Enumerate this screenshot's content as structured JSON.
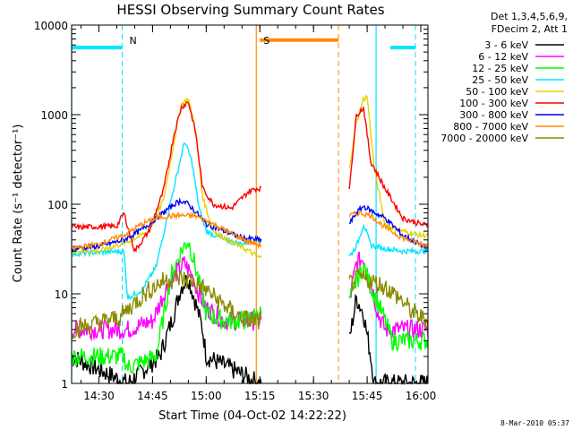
{
  "chart_data": {
    "type": "line",
    "title": "HESSI Observing Summary Count Rates",
    "xlabel": "Start Time (04-Oct-02 14:22:22)",
    "ylabel": "Count Rate (s⁻¹ detector⁻¹)",
    "yscale": "log",
    "ylim": [
      1,
      10000
    ],
    "xlim": [
      "14:22:22",
      "16:02:00"
    ],
    "x_ticks": [
      "14:30",
      "14:45",
      "15:00",
      "15:15",
      "15:30",
      "15:45",
      "16:00"
    ],
    "y_ticks": [
      "1",
      "10",
      "100",
      "1000",
      "10000"
    ],
    "legend_header": [
      "Det 1,3,4,5,6,9,",
      "FDecim 2, Att 1"
    ],
    "timestamp": "8-Mar-2010 05:37",
    "legend_position": "right-outside",
    "grid": false,
    "annotations": [
      {
        "text": "N",
        "color": "#00e5ff",
        "time": "14:36:30"
      },
      {
        "text": "S",
        "color": "#ff8c00",
        "time": "15:14:00"
      }
    ],
    "level_bars": [
      {
        "color": "#00e5ff",
        "t0": "14:22:22",
        "t1": "14:36:30",
        "value": 5600
      },
      {
        "color": "#00e5ff",
        "t0": "15:51:30",
        "t1": "15:58:30",
        "value": 5600
      },
      {
        "color": "#ff8c00",
        "t0": "15:15:00",
        "t1": "15:37:00",
        "value": 6800
      }
    ],
    "dashed_markers": [
      {
        "time": "14:36:30",
        "color": "#00e5ff"
      },
      {
        "time": "15:37:00",
        "color": "#ff8c00"
      },
      {
        "time": "15:58:30",
        "color": "#00e5ff"
      }
    ],
    "solid_markers": [
      {
        "time": "14:22:22",
        "color": "#00e5ff"
      },
      {
        "time": "15:14:00",
        "color": "#ff8c00"
      },
      {
        "time": "15:47:30",
        "color": "#00e5ff"
      }
    ],
    "segments": [
      {
        "t0": "14:22:22",
        "t1": "15:15:30"
      },
      {
        "t0": "15:40:00",
        "t1": "16:02:00"
      }
    ],
    "series": [
      {
        "name": "3 - 6 keV",
        "color": "#000000",
        "pts": [
          [
            "14:22:22",
            2
          ],
          [
            "14:38",
            1
          ],
          [
            "14:47",
            2
          ],
          [
            "14:51",
            6
          ],
          [
            "14:53",
            12
          ],
          [
            "14:55",
            15
          ],
          [
            "14:57",
            8
          ],
          [
            "14:59",
            4
          ],
          [
            "15:00",
            2
          ],
          [
            "15:15",
            1
          ],
          [
            "15:40",
            3
          ],
          [
            "15:42",
            9
          ],
          [
            "15:44",
            6
          ],
          [
            "15:46",
            2
          ],
          [
            "15:47",
            1
          ],
          [
            "16:02",
            1
          ]
        ]
      },
      {
        "name": "6 - 12 keV",
        "color": "#ff00ff",
        "pts": [
          [
            "14:22:22",
            4
          ],
          [
            "14:38",
            4
          ],
          [
            "14:45",
            5
          ],
          [
            "14:49",
            12
          ],
          [
            "14:52",
            18
          ],
          [
            "14:54",
            22
          ],
          [
            "14:56",
            16
          ],
          [
            "14:58",
            10
          ],
          [
            "15:00",
            7
          ],
          [
            "15:05",
            5
          ],
          [
            "15:10",
            5
          ],
          [
            "15:15",
            5
          ],
          [
            "15:40",
            8
          ],
          [
            "15:42",
            22
          ],
          [
            "15:44",
            25
          ],
          [
            "15:46",
            14
          ],
          [
            "15:48",
            6
          ],
          [
            "15:50",
            4
          ],
          [
            "16:02",
            4
          ]
        ]
      },
      {
        "name": "12 - 25 keV",
        "color": "#00ff00",
        "pts": [
          [
            "14:22:22",
            2
          ],
          [
            "14:37",
            2
          ],
          [
            "14:38",
            1.5
          ],
          [
            "14:46",
            2
          ],
          [
            "14:50",
            15
          ],
          [
            "14:53",
            30
          ],
          [
            "14:55",
            40
          ],
          [
            "14:57",
            20
          ],
          [
            "15:00",
            6
          ],
          [
            "15:05",
            5
          ],
          [
            "15:10",
            5
          ],
          [
            "15:15",
            6
          ],
          [
            "15:40",
            8
          ],
          [
            "15:42",
            14
          ],
          [
            "15:44",
            20
          ],
          [
            "15:46",
            12
          ],
          [
            "15:48",
            8
          ],
          [
            "15:50",
            5
          ],
          [
            "15:52",
            3
          ],
          [
            "16:02",
            3
          ]
        ]
      },
      {
        "name": "25 - 50 keV",
        "color": "#00e5ff",
        "pts": [
          [
            "14:22:22",
            28
          ],
          [
            "14:37",
            30
          ],
          [
            "14:38",
            9
          ],
          [
            "14:42",
            11
          ],
          [
            "14:46",
            20
          ],
          [
            "14:49",
            70
          ],
          [
            "14:52",
            230
          ],
          [
            "14:54",
            510
          ],
          [
            "14:56",
            300
          ],
          [
            "14:58",
            90
          ],
          [
            "15:00",
            50
          ],
          [
            "15:05",
            40
          ],
          [
            "15:10",
            36
          ],
          [
            "15:14",
            40
          ],
          [
            "15:40",
            26
          ],
          [
            "15:42",
            34
          ],
          [
            "15:44",
            60
          ],
          [
            "15:46",
            35
          ],
          [
            "15:50",
            32
          ],
          [
            "15:55",
            30
          ],
          [
            "16:00",
            30
          ],
          [
            "16:02",
            30
          ]
        ]
      },
      {
        "name": "50 - 100 keV",
        "color": "#e6d200",
        "pts": [
          [
            "14:22:22",
            30
          ],
          [
            "14:30",
            30
          ],
          [
            "14:38",
            38
          ],
          [
            "14:44",
            50
          ],
          [
            "14:48",
            110
          ],
          [
            "14:51",
            500
          ],
          [
            "14:53",
            1300
          ],
          [
            "14:55",
            1500
          ],
          [
            "14:57",
            700
          ],
          [
            "14:59",
            120
          ],
          [
            "15:02",
            50
          ],
          [
            "15:07",
            38
          ],
          [
            "15:12",
            30
          ],
          [
            "15:15",
            25
          ],
          [
            "15:40",
            250
          ],
          [
            "15:42",
            800
          ],
          [
            "15:44",
            1500
          ],
          [
            "15:45",
            1600
          ],
          [
            "15:47",
            250
          ],
          [
            "15:50",
            60
          ],
          [
            "15:55",
            50
          ],
          [
            "16:00",
            45
          ],
          [
            "16:02",
            45
          ]
        ]
      },
      {
        "name": "100 - 300 keV",
        "color": "#ff0000",
        "pts": [
          [
            "14:22:22",
            55
          ],
          [
            "14:35",
            57
          ],
          [
            "14:37",
            80
          ],
          [
            "14:40",
            30
          ],
          [
            "14:44",
            50
          ],
          [
            "14:48",
            140
          ],
          [
            "14:51",
            600
          ],
          [
            "14:53",
            1200
          ],
          [
            "14:55",
            1400
          ],
          [
            "14:57",
            650
          ],
          [
            "14:59",
            150
          ],
          [
            "15:02",
            100
          ],
          [
            "15:07",
            90
          ],
          [
            "15:12",
            140
          ],
          [
            "15:14",
            150
          ],
          [
            "15:40",
            150
          ],
          [
            "15:42",
            1000
          ],
          [
            "15:44",
            1200
          ],
          [
            "15:46",
            300
          ],
          [
            "15:50",
            150
          ],
          [
            "15:55",
            70
          ],
          [
            "16:00",
            60
          ],
          [
            "16:02",
            58
          ]
        ]
      },
      {
        "name": "300 - 800 keV",
        "color": "#0000ff",
        "pts": [
          [
            "14:22:22",
            32
          ],
          [
            "14:30",
            34
          ],
          [
            "14:37",
            40
          ],
          [
            "14:42",
            52
          ],
          [
            "14:47",
            75
          ],
          [
            "14:51",
            100
          ],
          [
            "14:53",
            110
          ],
          [
            "14:55",
            100
          ],
          [
            "14:58",
            75
          ],
          [
            "15:00",
            60
          ],
          [
            "15:05",
            50
          ],
          [
            "15:10",
            42
          ],
          [
            "15:15",
            40
          ],
          [
            "15:40",
            60
          ],
          [
            "15:42",
            80
          ],
          [
            "15:44",
            95
          ],
          [
            "15:46",
            85
          ],
          [
            "15:50",
            70
          ],
          [
            "15:55",
            45
          ],
          [
            "16:00",
            35
          ],
          [
            "16:02",
            33
          ]
        ]
      },
      {
        "name": "800 - 7000 keV",
        "color": "#ff8c00",
        "pts": [
          [
            "14:22:22",
            32
          ],
          [
            "14:30",
            36
          ],
          [
            "14:37",
            45
          ],
          [
            "14:42",
            60
          ],
          [
            "14:47",
            72
          ],
          [
            "14:52",
            75
          ],
          [
            "14:57",
            74
          ],
          [
            "15:02",
            60
          ],
          [
            "15:07",
            47
          ],
          [
            "15:12",
            38
          ],
          [
            "15:15",
            35
          ],
          [
            "15:40",
            75
          ],
          [
            "15:43",
            80
          ],
          [
            "15:46",
            75
          ],
          [
            "15:50",
            55
          ],
          [
            "15:55",
            42
          ],
          [
            "16:00",
            36
          ],
          [
            "16:02",
            35
          ]
        ]
      },
      {
        "name": "7000 - 20000 keV",
        "color": "#8b8b00",
        "pts": [
          [
            "14:22:22",
            4
          ],
          [
            "14:28",
            4.5
          ],
          [
            "14:32",
            5
          ],
          [
            "14:36",
            5.5
          ],
          [
            "14:40",
            8
          ],
          [
            "14:44",
            11
          ],
          [
            "14:48",
            14
          ],
          [
            "14:52",
            15
          ],
          [
            "14:56",
            14
          ],
          [
            "15:00",
            11
          ],
          [
            "15:04",
            8
          ],
          [
            "15:08",
            6
          ],
          [
            "15:12",
            5
          ],
          [
            "15:15",
            5
          ],
          [
            "15:40",
            13
          ],
          [
            "15:43",
            15
          ],
          [
            "15:46",
            14
          ],
          [
            "15:50",
            12
          ],
          [
            "15:54",
            9
          ],
          [
            "15:58",
            6
          ],
          [
            "16:02",
            5
          ]
        ]
      }
    ]
  }
}
